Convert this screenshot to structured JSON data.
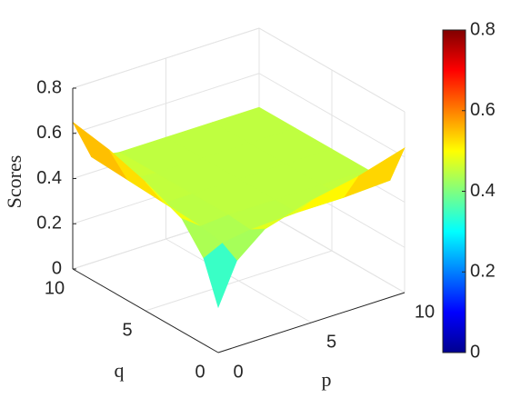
{
  "chart_data": {
    "type": "surface",
    "zlabel": "Scores",
    "xlabel": "p",
    "ylabel": "q",
    "x": [
      0,
      1,
      2.5,
      5,
      7.5,
      10
    ],
    "y": [
      0,
      1,
      2.5,
      5,
      7.5,
      10
    ],
    "z": [
      [
        0.2,
        0.38,
        0.48,
        0.54,
        0.58,
        0.64
      ],
      [
        0.38,
        0.42,
        0.44,
        0.45,
        0.45,
        0.46
      ],
      [
        0.5,
        0.44,
        0.45,
        0.45,
        0.45,
        0.45
      ],
      [
        0.57,
        0.45,
        0.45,
        0.45,
        0.45,
        0.45
      ],
      [
        0.62,
        0.46,
        0.45,
        0.45,
        0.45,
        0.45
      ],
      [
        0.65,
        0.47,
        0.45,
        0.45,
        0.45,
        0.45
      ]
    ],
    "xlim": [
      0,
      10
    ],
    "xticks": [
      0,
      5,
      10
    ],
    "ylim": [
      0,
      10
    ],
    "yticks": [
      0,
      5,
      10
    ],
    "zlim": [
      0,
      0.8
    ],
    "zticks": [
      0,
      0.2,
      0.4,
      0.6,
      0.8
    ],
    "colormap": "jet",
    "clim": [
      0,
      0.8
    ],
    "cticks": [
      0,
      0.2,
      0.4,
      0.6,
      0.8
    ],
    "grid": true
  }
}
